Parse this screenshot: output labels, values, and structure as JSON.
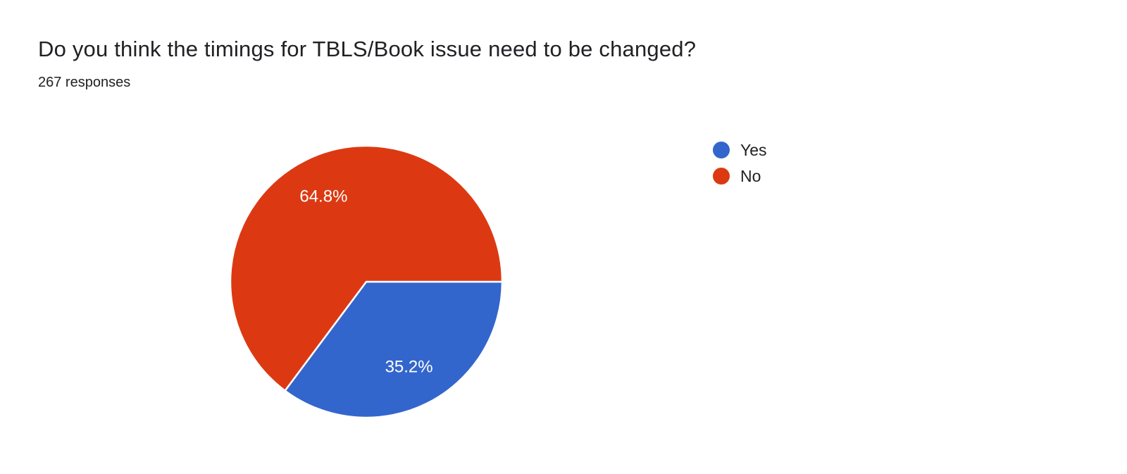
{
  "header": {
    "title": "Do you think the timings for TBLS/Book issue need to be changed?",
    "responses_count": "267 responses"
  },
  "legend": {
    "position": "right",
    "items": [
      {
        "label": "Yes",
        "color": "#3366CC"
      },
      {
        "label": "No",
        "color": "#DC3912"
      }
    ]
  },
  "chart_data": {
    "type": "pie",
    "title": "Do you think the timings for TBLS/Book issue need to be changed?",
    "subtitle": "267 responses",
    "categories": [
      "Yes",
      "No"
    ],
    "values": [
      35.2,
      64.8
    ],
    "unit": "percent",
    "slice_labels": [
      "35.2%",
      "64.8%"
    ],
    "colors": [
      "#3366CC",
      "#DC3912"
    ],
    "slice_border_color": "#ffffff",
    "label_color": "#ffffff",
    "background": "#ffffff",
    "legend_position": "right",
    "start_angle_deg": 0,
    "direction": "clockwise"
  }
}
